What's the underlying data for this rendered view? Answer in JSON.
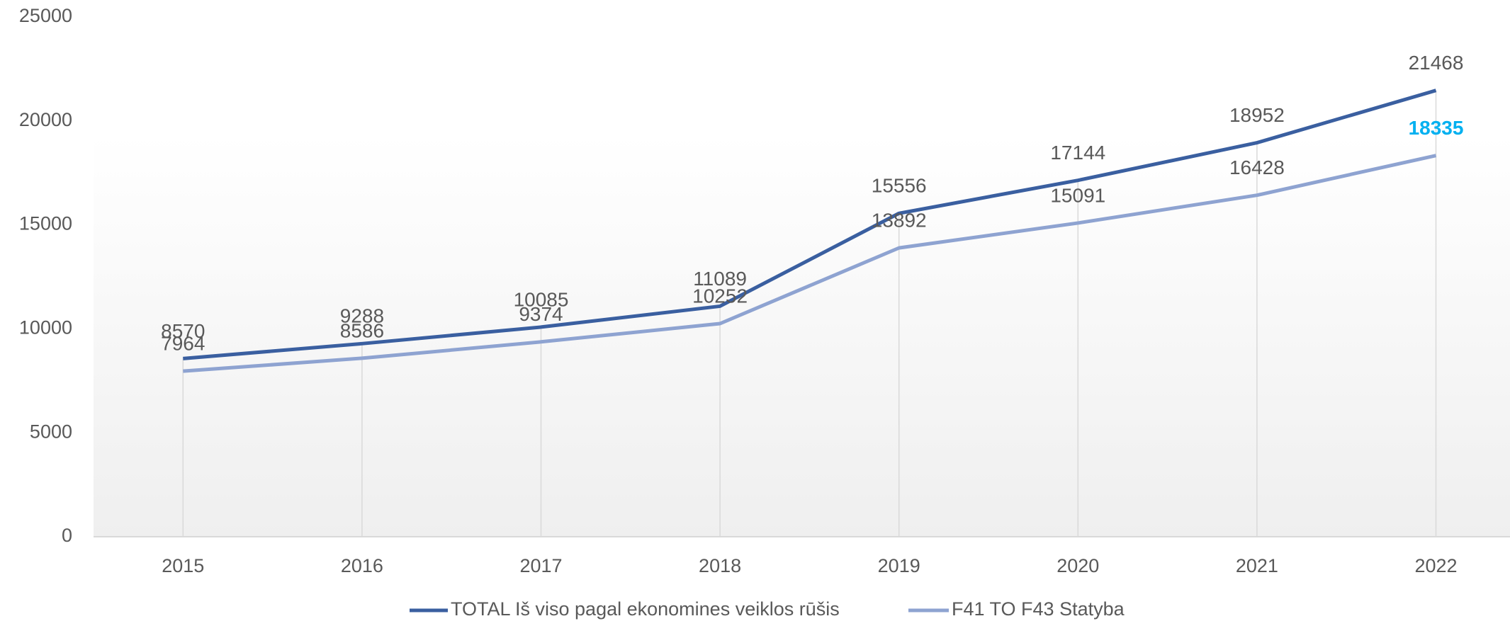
{
  "chart_data": {
    "type": "line",
    "categories": [
      "2015",
      "2016",
      "2017",
      "2018",
      "2019",
      "2020",
      "2021",
      "2022"
    ],
    "series": [
      {
        "name": "TOTAL Iš viso pagal ekonomines veiklos rūšis",
        "color": "#3a5fa0",
        "values": [
          8570,
          9288,
          10085,
          11089,
          15556,
          17144,
          18952,
          21468
        ]
      },
      {
        "name": "F41  TO  F43 Statyba",
        "color": "#8ea3d1",
        "values": [
          7964,
          8586,
          9374,
          10252,
          13892,
          15091,
          16428,
          18335
        ],
        "highlight": "last",
        "highlight_color": "#00b0f0"
      }
    ],
    "ylim": [
      0,
      25000
    ],
    "yticks": [
      0,
      5000,
      10000,
      15000,
      20000,
      25000
    ],
    "drop_lines": true,
    "legend": "bottom"
  }
}
